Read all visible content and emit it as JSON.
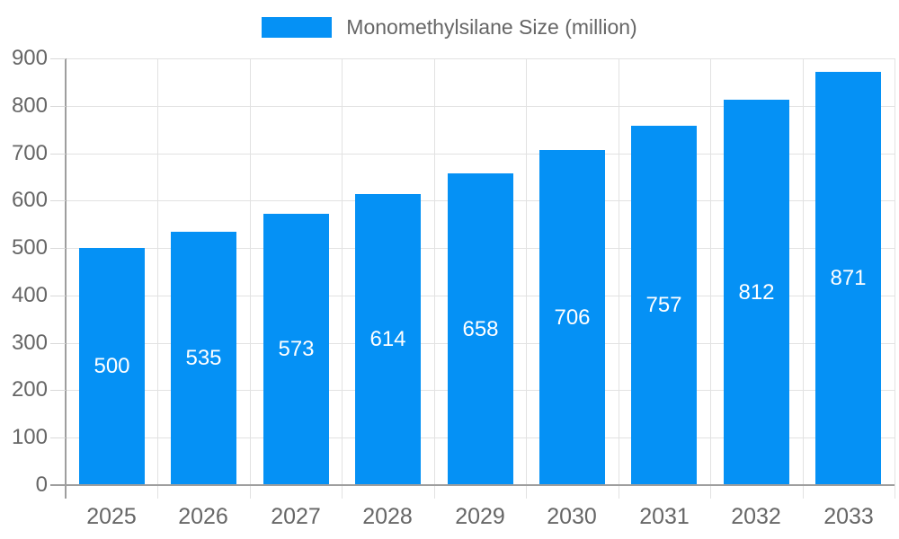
{
  "chart_data": {
    "type": "bar",
    "title": "Monomethylsilane Size (million)",
    "legend": [
      "Monomethylsilane Size (million)"
    ],
    "legend_position": "top",
    "categories": [
      "2025",
      "2026",
      "2027",
      "2028",
      "2029",
      "2030",
      "2031",
      "2032",
      "2033"
    ],
    "values": [
      500,
      535,
      573,
      614,
      658,
      706,
      757,
      812,
      871
    ],
    "xlabel": "",
    "ylabel": "",
    "ylim": [
      0,
      900
    ],
    "ytick_step": 100,
    "ytick_labels": [
      "0",
      "100",
      "200",
      "300",
      "400",
      "500",
      "600",
      "700",
      "800",
      "900"
    ],
    "grid": true,
    "bar_value_labels_inside": true
  },
  "colors": {
    "bar": "#0591f5",
    "grid": "#e2e2e2",
    "axis": "#9e9e9e",
    "tick": "#d9d9d9",
    "label": "#666666",
    "bar_label": "#ffffff"
  }
}
